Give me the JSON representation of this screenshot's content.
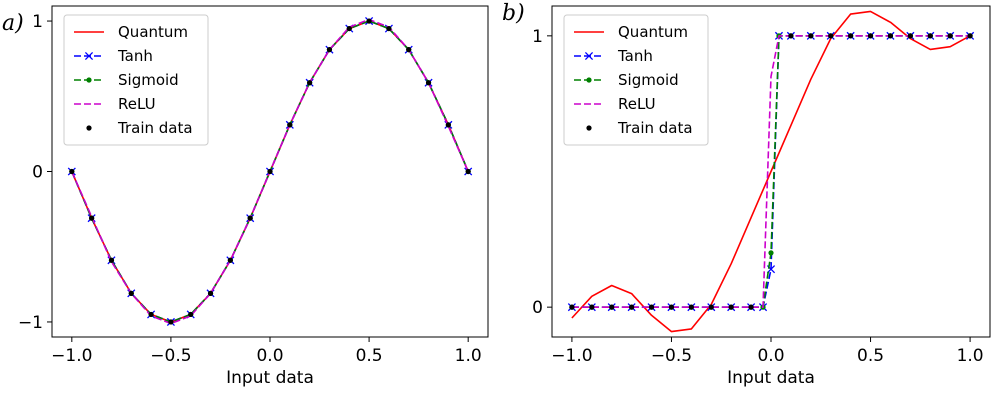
{
  "chart_data": [
    {
      "type": "line",
      "panel_label": "a)",
      "xlabel": "Input data",
      "ylabel": "",
      "xlim": [
        -1.1,
        1.1
      ],
      "ylim": [
        -1.1,
        1.1
      ],
      "xticks": [
        -1.0,
        -0.5,
        0.0,
        0.5,
        1.0
      ],
      "xtick_labels": [
        "−1.0",
        "−0.5",
        "0.0",
        "0.5",
        "1.0"
      ],
      "yticks": [
        -1,
        0,
        1
      ],
      "ytick_labels": [
        "−1",
        "0",
        "1"
      ],
      "legend_position": "top-left",
      "series": [
        {
          "name": "Quantum",
          "color": "#ff0000",
          "style": "solid",
          "marker": "none",
          "x": [
            -1.0,
            -0.9,
            -0.8,
            -0.7,
            -0.6,
            -0.5,
            -0.4,
            -0.3,
            -0.2,
            -0.1,
            0.0,
            0.1,
            0.2,
            0.3,
            0.4,
            0.5,
            0.6,
            0.7,
            0.8,
            0.9,
            1.0
          ],
          "y": [
            0.0,
            -0.31,
            -0.59,
            -0.81,
            -0.95,
            -1.0,
            -0.95,
            -0.81,
            -0.59,
            -0.31,
            0.0,
            0.31,
            0.59,
            0.81,
            0.95,
            1.0,
            0.95,
            0.81,
            0.59,
            0.31,
            0.0
          ]
        },
        {
          "name": "Tanh",
          "color": "#0000ff",
          "style": "dashed",
          "marker": "x",
          "x": [
            -1.0,
            -0.9,
            -0.8,
            -0.7,
            -0.6,
            -0.5,
            -0.4,
            -0.3,
            -0.2,
            -0.1,
            0.0,
            0.1,
            0.2,
            0.3,
            0.4,
            0.5,
            0.6,
            0.7,
            0.8,
            0.9,
            1.0
          ],
          "y": [
            0.0,
            -0.31,
            -0.59,
            -0.81,
            -0.95,
            -1.0,
            -0.95,
            -0.81,
            -0.59,
            -0.31,
            0.0,
            0.31,
            0.59,
            0.81,
            0.95,
            1.0,
            0.95,
            0.81,
            0.59,
            0.31,
            0.0
          ]
        },
        {
          "name": "Sigmoid",
          "color": "#008000",
          "style": "dashed",
          "marker": "dot",
          "x": [
            -1.0,
            -0.9,
            -0.8,
            -0.7,
            -0.6,
            -0.5,
            -0.4,
            -0.3,
            -0.2,
            -0.1,
            0.0,
            0.1,
            0.2,
            0.3,
            0.4,
            0.5,
            0.6,
            0.7,
            0.8,
            0.9,
            1.0
          ],
          "y": [
            0.0,
            -0.31,
            -0.59,
            -0.81,
            -0.95,
            -1.0,
            -0.95,
            -0.81,
            -0.59,
            -0.31,
            0.0,
            0.31,
            0.59,
            0.81,
            0.95,
            1.0,
            0.95,
            0.81,
            0.59,
            0.31,
            0.0
          ]
        },
        {
          "name": "ReLU",
          "color": "#cc00cc",
          "style": "dashed",
          "marker": "none",
          "x": [
            -1.0,
            -0.9,
            -0.8,
            -0.7,
            -0.6,
            -0.5,
            -0.4,
            -0.3,
            -0.2,
            -0.1,
            0.0,
            0.1,
            0.2,
            0.3,
            0.4,
            0.5,
            0.6,
            0.7,
            0.8,
            0.9,
            1.0
          ],
          "y": [
            0.0,
            -0.3,
            -0.6,
            -0.81,
            -0.96,
            -1.01,
            -0.96,
            -0.81,
            -0.59,
            -0.31,
            0.0,
            0.31,
            0.59,
            0.81,
            0.96,
            1.01,
            0.96,
            0.81,
            0.59,
            0.3,
            0.0
          ]
        },
        {
          "name": "Train data",
          "color": "#000000",
          "style": "none",
          "marker": "dot",
          "x": [
            -1.0,
            -0.9,
            -0.8,
            -0.7,
            -0.6,
            -0.5,
            -0.4,
            -0.3,
            -0.2,
            -0.1,
            0.0,
            0.1,
            0.2,
            0.3,
            0.4,
            0.5,
            0.6,
            0.7,
            0.8,
            0.9,
            1.0
          ],
          "y": [
            0.0,
            -0.31,
            -0.59,
            -0.81,
            -0.95,
            -1.0,
            -0.95,
            -0.81,
            -0.59,
            -0.31,
            0.0,
            0.31,
            0.59,
            0.81,
            0.95,
            1.0,
            0.95,
            0.81,
            0.59,
            0.31,
            0.0
          ]
        }
      ]
    },
    {
      "type": "line",
      "panel_label": "b)",
      "xlabel": "Input data",
      "ylabel": "",
      "xlim": [
        -1.1,
        1.1
      ],
      "ylim": [
        -0.11,
        1.11
      ],
      "xticks": [
        -1.0,
        -0.5,
        0.0,
        0.5,
        1.0
      ],
      "xtick_labels": [
        "−1.0",
        "−0.5",
        "0.0",
        "0.5",
        "1.0"
      ],
      "yticks": [
        0,
        1
      ],
      "ytick_labels": [
        "0",
        "1"
      ],
      "legend_position": "top-left",
      "series": [
        {
          "name": "Quantum",
          "color": "#ff0000",
          "style": "solid",
          "marker": "none",
          "x": [
            -1.0,
            -0.9,
            -0.8,
            -0.7,
            -0.6,
            -0.5,
            -0.4,
            -0.3,
            -0.2,
            -0.1,
            0.0,
            0.1,
            0.2,
            0.3,
            0.4,
            0.5,
            0.6,
            0.7,
            0.8,
            0.9,
            1.0
          ],
          "y": [
            -0.04,
            0.04,
            0.08,
            0.05,
            -0.03,
            -0.09,
            -0.08,
            0.01,
            0.16,
            0.33,
            0.5,
            0.67,
            0.84,
            0.99,
            1.08,
            1.09,
            1.05,
            0.99,
            0.95,
            0.96,
            1.0
          ]
        },
        {
          "name": "Tanh",
          "color": "#0000ff",
          "style": "dashed",
          "marker": "x",
          "x": [
            -1.0,
            -0.9,
            -0.8,
            -0.7,
            -0.6,
            -0.5,
            -0.4,
            -0.3,
            -0.2,
            -0.1,
            -0.04,
            0.0,
            0.04,
            0.1,
            0.2,
            0.3,
            0.4,
            0.5,
            0.6,
            0.7,
            0.8,
            0.9,
            1.0
          ],
          "y": [
            0.0,
            0.0,
            0.0,
            0.0,
            0.0,
            0.0,
            0.0,
            0.0,
            0.0,
            0.0,
            0.0,
            0.14,
            1.0,
            1.0,
            1.0,
            1.0,
            1.0,
            1.0,
            1.0,
            1.0,
            1.0,
            1.0,
            1.0
          ]
        },
        {
          "name": "Sigmoid",
          "color": "#008000",
          "style": "dashed",
          "marker": "dot",
          "x": [
            -1.0,
            -0.9,
            -0.8,
            -0.7,
            -0.6,
            -0.5,
            -0.4,
            -0.3,
            -0.2,
            -0.1,
            -0.04,
            0.0,
            0.04,
            0.1,
            0.2,
            0.3,
            0.4,
            0.5,
            0.6,
            0.7,
            0.8,
            0.9,
            1.0
          ],
          "y": [
            0.0,
            0.0,
            0.0,
            0.0,
            0.0,
            0.0,
            0.0,
            0.0,
            0.0,
            0.0,
            0.0,
            0.2,
            1.0,
            1.0,
            1.0,
            1.0,
            1.0,
            1.0,
            1.0,
            1.0,
            1.0,
            1.0,
            1.0
          ]
        },
        {
          "name": "ReLU",
          "color": "#cc00cc",
          "style": "dashed",
          "marker": "none",
          "x": [
            -1.0,
            -0.9,
            -0.8,
            -0.7,
            -0.6,
            -0.5,
            -0.4,
            -0.3,
            -0.2,
            -0.1,
            -0.04,
            0.0,
            0.04,
            0.1,
            0.2,
            0.3,
            0.4,
            0.5,
            0.6,
            0.7,
            0.8,
            0.9,
            1.0
          ],
          "y": [
            0.0,
            0.0,
            0.0,
            0.0,
            0.0,
            0.0,
            0.0,
            0.0,
            0.0,
            0.0,
            0.0,
            0.85,
            1.0,
            1.0,
            1.0,
            1.0,
            1.0,
            1.0,
            1.0,
            1.0,
            1.0,
            1.0,
            1.0
          ]
        },
        {
          "name": "Train data",
          "color": "#000000",
          "style": "none",
          "marker": "dot",
          "x": [
            -1.0,
            -0.9,
            -0.8,
            -0.7,
            -0.6,
            -0.5,
            -0.4,
            -0.3,
            -0.2,
            -0.1,
            0.1,
            0.2,
            0.3,
            0.4,
            0.5,
            0.6,
            0.7,
            0.8,
            0.9,
            1.0
          ],
          "y": [
            0.0,
            0.0,
            0.0,
            0.0,
            0.0,
            0.0,
            0.0,
            0.0,
            0.0,
            0.0,
            1.0,
            1.0,
            1.0,
            1.0,
            1.0,
            1.0,
            1.0,
            1.0,
            1.0,
            1.0
          ]
        }
      ]
    }
  ]
}
